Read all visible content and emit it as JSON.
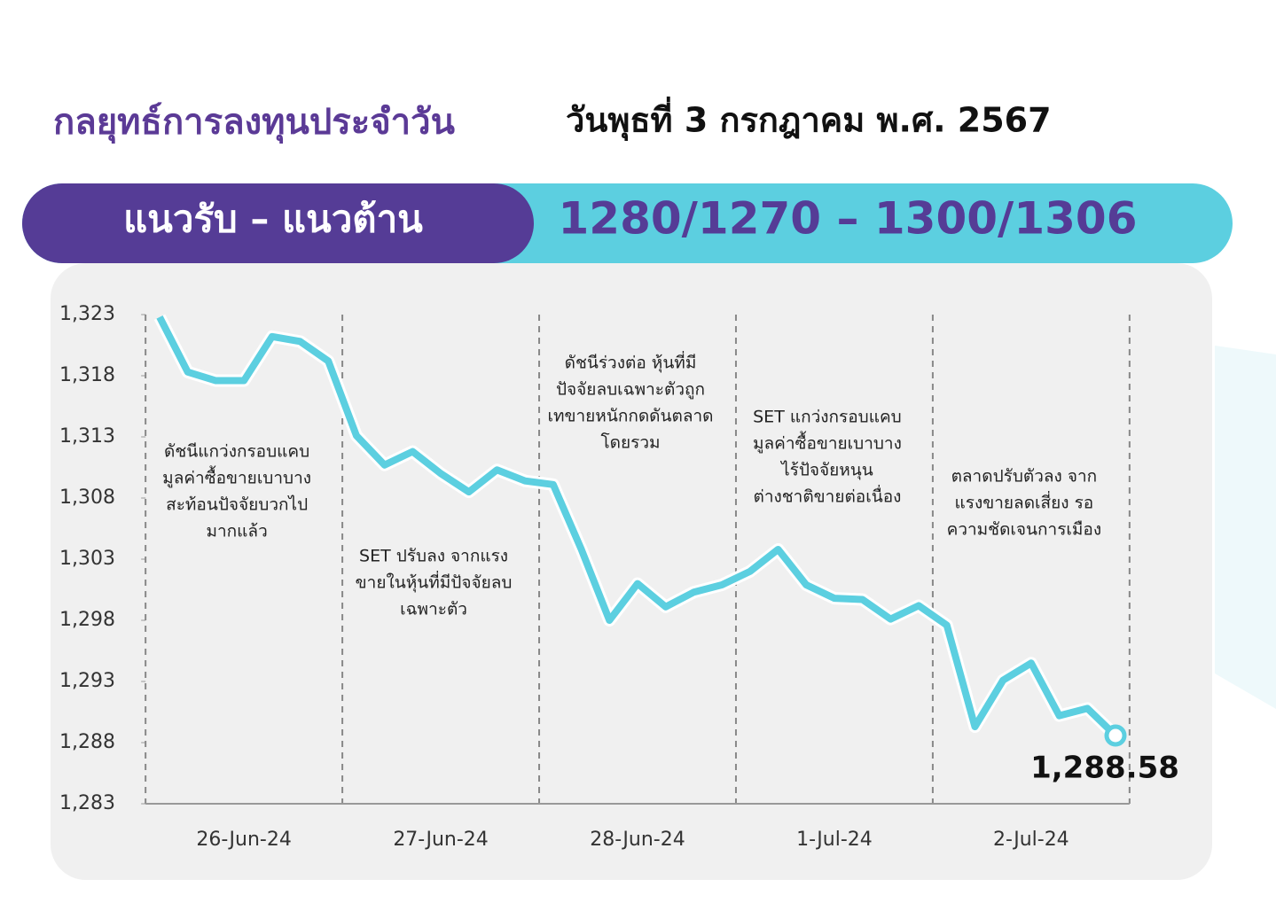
{
  "header": {
    "title": "กลยุทธ์การลงทุนประจำวัน",
    "date": "วันพุธที่ 3 กรกฎาคม พ.ศ. 2567"
  },
  "banner": {
    "label": "แนวรับ – แนวต้าน",
    "range": "1280/1270  – 1300/1306"
  },
  "chart_data": {
    "type": "line",
    "categories": [
      null,
      null,
      null,
      "26-Jun-24",
      null,
      null,
      null,
      null,
      null,
      null,
      "27-Jun-24",
      null,
      null,
      null,
      null,
      null,
      null,
      "28-Jun-24",
      null,
      null,
      null,
      null,
      null,
      null,
      "1-Jul-24",
      null,
      null,
      null,
      null,
      null,
      null,
      "2-Jul-24",
      null,
      null,
      null
    ],
    "series": [
      {
        "name": "SET",
        "color": "#5ccfe0",
        "values": [
          1322.8,
          1318.3,
          1317.6,
          1317.6,
          1321.2,
          1320.8,
          1319.2,
          1313.1,
          1310.7,
          1311.8,
          1310.0,
          1308.5,
          1310.3,
          1309.4,
          1309.1,
          1303.8,
          1298.0,
          1301.0,
          1299.1,
          1300.3,
          1300.9,
          1302.0,
          1303.8,
          1300.9,
          1299.8,
          1299.7,
          1298.1,
          1299.2,
          1297.6,
          1289.3,
          1293.1,
          1294.5,
          1290.2,
          1290.8,
          1288.58
        ],
        "value_labels": [
          null,
          null,
          null,
          null,
          null,
          null,
          null,
          null,
          null,
          null,
          null,
          null,
          null,
          null,
          null,
          null,
          null,
          null,
          null,
          null,
          null,
          null,
          null,
          null,
          null,
          null,
          null,
          null,
          null,
          null,
          null,
          null,
          null,
          null,
          "1,288.58"
        ]
      }
    ],
    "ylim": [
      1283,
      1323
    ],
    "yticks": [
      {
        "value": 1283,
        "label": "1,283"
      },
      {
        "value": 1288,
        "label": "1,288"
      },
      {
        "value": 1293,
        "label": "1,293"
      },
      {
        "value": 1298,
        "label": "1,298"
      },
      {
        "value": 1303,
        "label": "1,303"
      },
      {
        "value": 1308,
        "label": "1,308"
      },
      {
        "value": 1313,
        "label": "1,313"
      },
      {
        "value": 1318,
        "label": "1,318"
      },
      {
        "value": 1323,
        "label": "1,323"
      }
    ],
    "annotations": [
      [
        "ดัชนีแกว่งกรอบแคบ",
        "มูลค่าซื้อขายเบาบาง",
        "สะท้อนปัจจัยบวกไป",
        "มากแล้ว"
      ],
      [
        "SET ปรับลง จากแรง",
        "ขายในหุ้นที่มีปัจจัยลบ",
        "เฉพาะตัว"
      ],
      [
        "ดัชนีร่วงต่อ หุ้นที่มี",
        "ปัจจัยลบเฉพาะตัวถูก",
        "เทขายหนักกดดันตลาด",
        "โดยรวม"
      ],
      [
        "SET แกว่งกรอบแคบ",
        "มูลค่าซื้อขายเบาบาง",
        "ไร้ปัจจัยหนุน",
        "ต่างชาติขายต่อเนื่อง"
      ],
      [
        "ตลาดปรับตัวลง จาก",
        "แรงขายลดเสี่ยง รอ",
        "ความชัดเจนการเมือง"
      ]
    ]
  }
}
